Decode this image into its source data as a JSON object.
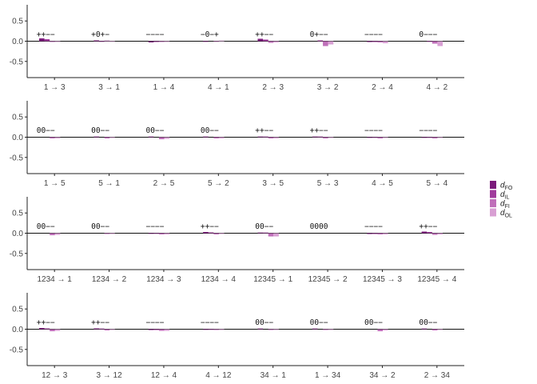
{
  "chart_data": {
    "type": "bar",
    "ylim": [
      -0.9,
      0.9
    ],
    "yticks": [
      "0.5",
      "0.0",
      "-0.5"
    ],
    "ytick_values": [
      0.5,
      0.0,
      -0.5
    ],
    "grid": false,
    "legend_position": "right",
    "series": [
      {
        "name": "d",
        "subscript": "FO",
        "color": "#7b1a7b"
      },
      {
        "name": "d",
        "subscript": "IL",
        "color": "#a03b9c"
      },
      {
        "name": "d",
        "subscript": "FI",
        "color": "#bf6fb9"
      },
      {
        "name": "d",
        "subscript": "OL",
        "color": "#d89fd3"
      }
    ],
    "panels": [
      {
        "categories": [
          "1 → 3",
          "3 → 1",
          "1 → 4",
          "4 → 1",
          "2 → 3",
          "3 → 2",
          "2 → 4",
          "4 → 2"
        ],
        "signs": [
          "++−−",
          "+0+−",
          "−−−−",
          "−0−+",
          "++−−",
          "0+−−",
          "−−−−",
          "0−−−"
        ],
        "values": [
          [
            0.07,
            0.05,
            -0.02,
            -0.02
          ],
          [
            0.02,
            -0.01,
            0.01,
            -0.01
          ],
          [
            -0.03,
            -0.02,
            -0.02,
            -0.02
          ],
          [
            -0.01,
            0.0,
            -0.01,
            0.01
          ],
          [
            0.06,
            0.04,
            -0.04,
            -0.03
          ],
          [
            0.0,
            0.02,
            -0.12,
            -0.08
          ],
          [
            -0.02,
            -0.02,
            -0.03,
            -0.05
          ],
          [
            0.0,
            -0.01,
            -0.06,
            -0.12
          ]
        ]
      },
      {
        "categories": [
          "1 → 5",
          "5 → 1",
          "2 → 5",
          "5 → 2",
          "3 → 5",
          "5 → 3",
          "4 → 5",
          "5 → 4"
        ],
        "signs": [
          "00−−",
          "00−−",
          "00−−",
          "00−−",
          "++−−",
          "++−−",
          "−−−−",
          "−−−−"
        ],
        "values": [
          [
            0.0,
            0.0,
            -0.03,
            -0.03
          ],
          [
            0.01,
            0.0,
            -0.03,
            -0.02
          ],
          [
            0.01,
            0.0,
            -0.05,
            -0.04
          ],
          [
            0.01,
            0.0,
            -0.03,
            -0.03
          ],
          [
            0.01,
            0.01,
            -0.03,
            -0.03
          ],
          [
            0.01,
            0.01,
            -0.03,
            -0.02
          ],
          [
            -0.01,
            -0.01,
            -0.03,
            -0.02
          ],
          [
            -0.01,
            -0.01,
            -0.03,
            -0.02
          ]
        ]
      },
      {
        "categories": [
          "1234 → 1",
          "1234 → 2",
          "1234 → 3",
          "1234 → 4",
          "12345 → 1",
          "12345 → 2",
          "12345 → 3",
          "12345 → 4"
        ],
        "signs": [
          "00−−",
          "00−−",
          "−−−−",
          "++−−",
          "00−−",
          "0000",
          "−−−−",
          "++−−"
        ],
        "values": [
          [
            0.0,
            0.0,
            -0.05,
            -0.04
          ],
          [
            0.0,
            0.0,
            -0.02,
            -0.02
          ],
          [
            -0.01,
            -0.01,
            -0.03,
            -0.03
          ],
          [
            0.03,
            0.02,
            -0.03,
            -0.02
          ],
          [
            0.01,
            0.01,
            -0.08,
            -0.08
          ],
          [
            0.0,
            0.0,
            0.0,
            0.0
          ],
          [
            -0.02,
            -0.02,
            -0.03,
            -0.03
          ],
          [
            0.04,
            0.03,
            -0.04,
            -0.03
          ]
        ]
      },
      {
        "categories": [
          "12 → 3",
          "3 → 12",
          "12 → 4",
          "4 → 12",
          "34 → 1",
          "1 → 34",
          "34 → 2",
          "2 → 34"
        ],
        "signs": [
          "++−−",
          "++−−",
          "−−−−",
          "−−−−",
          "00−−",
          "00−−",
          "00−−",
          "00−−"
        ],
        "values": [
          [
            0.03,
            0.02,
            -0.05,
            -0.04
          ],
          [
            0.02,
            0.01,
            -0.03,
            -0.02
          ],
          [
            -0.02,
            -0.02,
            -0.04,
            -0.04
          ],
          [
            -0.01,
            -0.01,
            -0.02,
            -0.02
          ],
          [
            0.01,
            0.0,
            -0.02,
            -0.02
          ],
          [
            0.01,
            0.0,
            -0.02,
            -0.02
          ],
          [
            0.0,
            0.0,
            -0.05,
            -0.03
          ],
          [
            0.01,
            0.0,
            -0.03,
            -0.02
          ]
        ]
      }
    ]
  }
}
